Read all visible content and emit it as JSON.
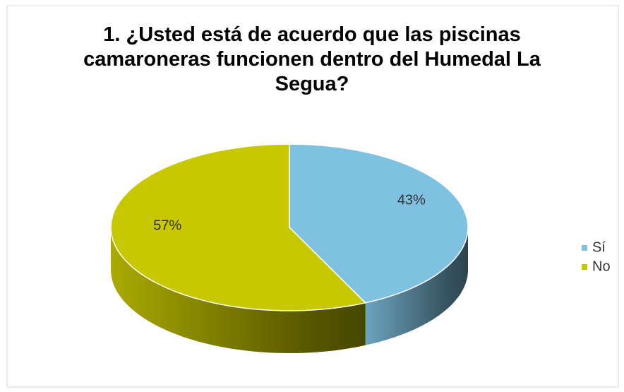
{
  "chart_data": {
    "type": "pie",
    "title": "1. ¿Usted está de acuerdo que las piscinas camaroneras funcionen dentro del Humedal La Segua?",
    "categories": [
      "Sí",
      "No"
    ],
    "values": [
      43,
      57
    ],
    "value_labels": [
      "43%",
      "57%"
    ],
    "colors": [
      "#7fc1e0",
      "#c8c800"
    ],
    "legend": "right"
  }
}
